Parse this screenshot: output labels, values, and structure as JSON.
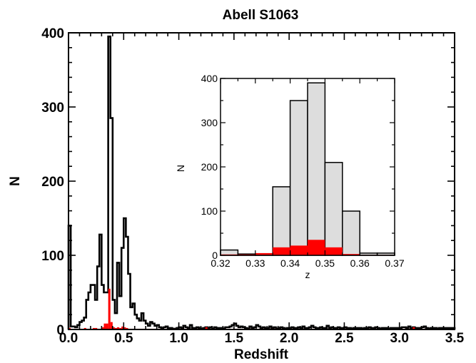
{
  "chart_data": [
    {
      "id": "main",
      "type": "histogram",
      "title": "Abell S1063",
      "xlabel": "Redshift",
      "ylabel": "N",
      "xlim": [
        0.0,
        3.5
      ],
      "ylim": [
        0,
        400
      ],
      "x_ticks": [
        "0.0",
        "0.5",
        "1.0",
        "1.5",
        "2.0",
        "2.5",
        "3.0",
        "3.5"
      ],
      "y_ticks": [
        "0",
        "100",
        "200",
        "300",
        "400"
      ],
      "bin_width": 0.02,
      "series": [
        {
          "style": "step-outline",
          "color": "#000000",
          "x_start": 0.0,
          "values": [
            140,
            4,
            4,
            3,
            6,
            10,
            12,
            16,
            40,
            50,
            60,
            60,
            40,
            85,
            128,
            60,
            50,
            50,
            395,
            285,
            40,
            22,
            90,
            45,
            110,
            150,
            125,
            75,
            30,
            35,
            20,
            15,
            12,
            22,
            12,
            8,
            5,
            10,
            8,
            5,
            6,
            3,
            2,
            3,
            4,
            2,
            2,
            1,
            1,
            2,
            3,
            2,
            5,
            3,
            2,
            6,
            2,
            2,
            3,
            2,
            1,
            2,
            3,
            2,
            3,
            1,
            3,
            2,
            2,
            2,
            1,
            3,
            3,
            4,
            6,
            8,
            5,
            3,
            4,
            3,
            2,
            1,
            4,
            2,
            3,
            6,
            4,
            2,
            3,
            2,
            2,
            4,
            2,
            3,
            1,
            2,
            3,
            2,
            1,
            2,
            2,
            3,
            2,
            2,
            3,
            2,
            4,
            2,
            2,
            3,
            5,
            3,
            2,
            2,
            3,
            2,
            2,
            5,
            2,
            3,
            2,
            2,
            3,
            2,
            2,
            3,
            2,
            2,
            1,
            2,
            2,
            2,
            2,
            1,
            2,
            2,
            3,
            2,
            2,
            3,
            2,
            1,
            2,
            2,
            2,
            1,
            2,
            2,
            2,
            2,
            2,
            3,
            3,
            2,
            4,
            2,
            3,
            2,
            2,
            2,
            3,
            4,
            2,
            1,
            2,
            2,
            2,
            1,
            2,
            2,
            2,
            2,
            2,
            2,
            2
          ]
        },
        {
          "style": "filled",
          "color": "#ff0000",
          "x_start": 0.0,
          "values": [
            2,
            1,
            1,
            1,
            1,
            1,
            1,
            2,
            1,
            1,
            1,
            2,
            2,
            1,
            1,
            3,
            8,
            8,
            55,
            10,
            3,
            2,
            3,
            2,
            4,
            3,
            2,
            1,
            1,
            1,
            1,
            1,
            1,
            1,
            1,
            1,
            1,
            1,
            1,
            1,
            1,
            1,
            1,
            1,
            1,
            1,
            1,
            1,
            1,
            1,
            1,
            1,
            1,
            1,
            1,
            1,
            1,
            1,
            1,
            1,
            1,
            1,
            3,
            1,
            1,
            1,
            1,
            1,
            1,
            1,
            1,
            1,
            1,
            1,
            1,
            1,
            1,
            1,
            1,
            1,
            1,
            1,
            1,
            1,
            1,
            1,
            1,
            1,
            1,
            1,
            1,
            1,
            1,
            1,
            1,
            1,
            1,
            1,
            1,
            1,
            1,
            1,
            1,
            1,
            1,
            1,
            1,
            1,
            1,
            1,
            1,
            1,
            1,
            1,
            1,
            1,
            1,
            1,
            1,
            1,
            1,
            1,
            1,
            1,
            1,
            1,
            1,
            1,
            1,
            1,
            1,
            1,
            1,
            1,
            1,
            1,
            1,
            1,
            1,
            1,
            1,
            1,
            1,
            1,
            1,
            1,
            1,
            1,
            1,
            1,
            1,
            1,
            1,
            1,
            1,
            1,
            3,
            1,
            1,
            1,
            1,
            1,
            1,
            1,
            1,
            1,
            1,
            1,
            1,
            1,
            1,
            1,
            1,
            1,
            1
          ]
        }
      ]
    },
    {
      "id": "inset",
      "type": "histogram",
      "xlabel": "z",
      "ylabel": "N",
      "xlim": [
        0.32,
        0.37
      ],
      "ylim": [
        0,
        400
      ],
      "x_ticks": [
        "0.32",
        "0.33",
        "0.34",
        "0.35",
        "0.36",
        "0.37"
      ],
      "y_ticks": [
        "0",
        "100",
        "200",
        "300",
        "400"
      ],
      "bin_width": 0.005,
      "series": [
        {
          "style": "filled-outline",
          "color": "#dddddd",
          "edge": "#000000",
          "x_start": 0.32,
          "values": [
            12,
            3,
            3,
            155,
            350,
            390,
            210,
            100,
            5,
            5
          ]
        },
        {
          "style": "filled",
          "color": "#ff0000",
          "x_start": 0.32,
          "values": [
            2,
            2,
            5,
            18,
            22,
            35,
            18,
            3,
            1,
            1
          ]
        }
      ]
    }
  ]
}
